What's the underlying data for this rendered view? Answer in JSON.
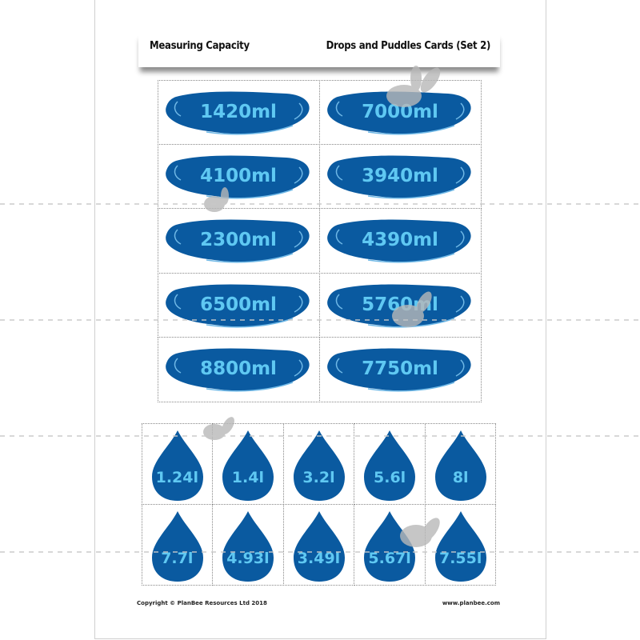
{
  "header": {
    "title": "Measuring Capacity",
    "subtitle": "Drops and Puddles Cards (Set 2)"
  },
  "puddles": [
    "1420ml",
    "7000ml",
    "4100ml",
    "3940ml",
    "2300ml",
    "4390ml",
    "6500ml",
    "5760ml",
    "8800ml",
    "7750ml"
  ],
  "drops": [
    "1.24l",
    "1.4l",
    "3.2l",
    "5.6l",
    "8l",
    "7.7l",
    "4.93l",
    "3.49l",
    "5.67l",
    "7.55l"
  ],
  "footer": {
    "copyright": "Copyright © PlanBee Resources Ltd 2018",
    "website": "www.planbee.com"
  },
  "colors": {
    "shape": "#0a5aa0",
    "text": "#5fc8f2"
  }
}
